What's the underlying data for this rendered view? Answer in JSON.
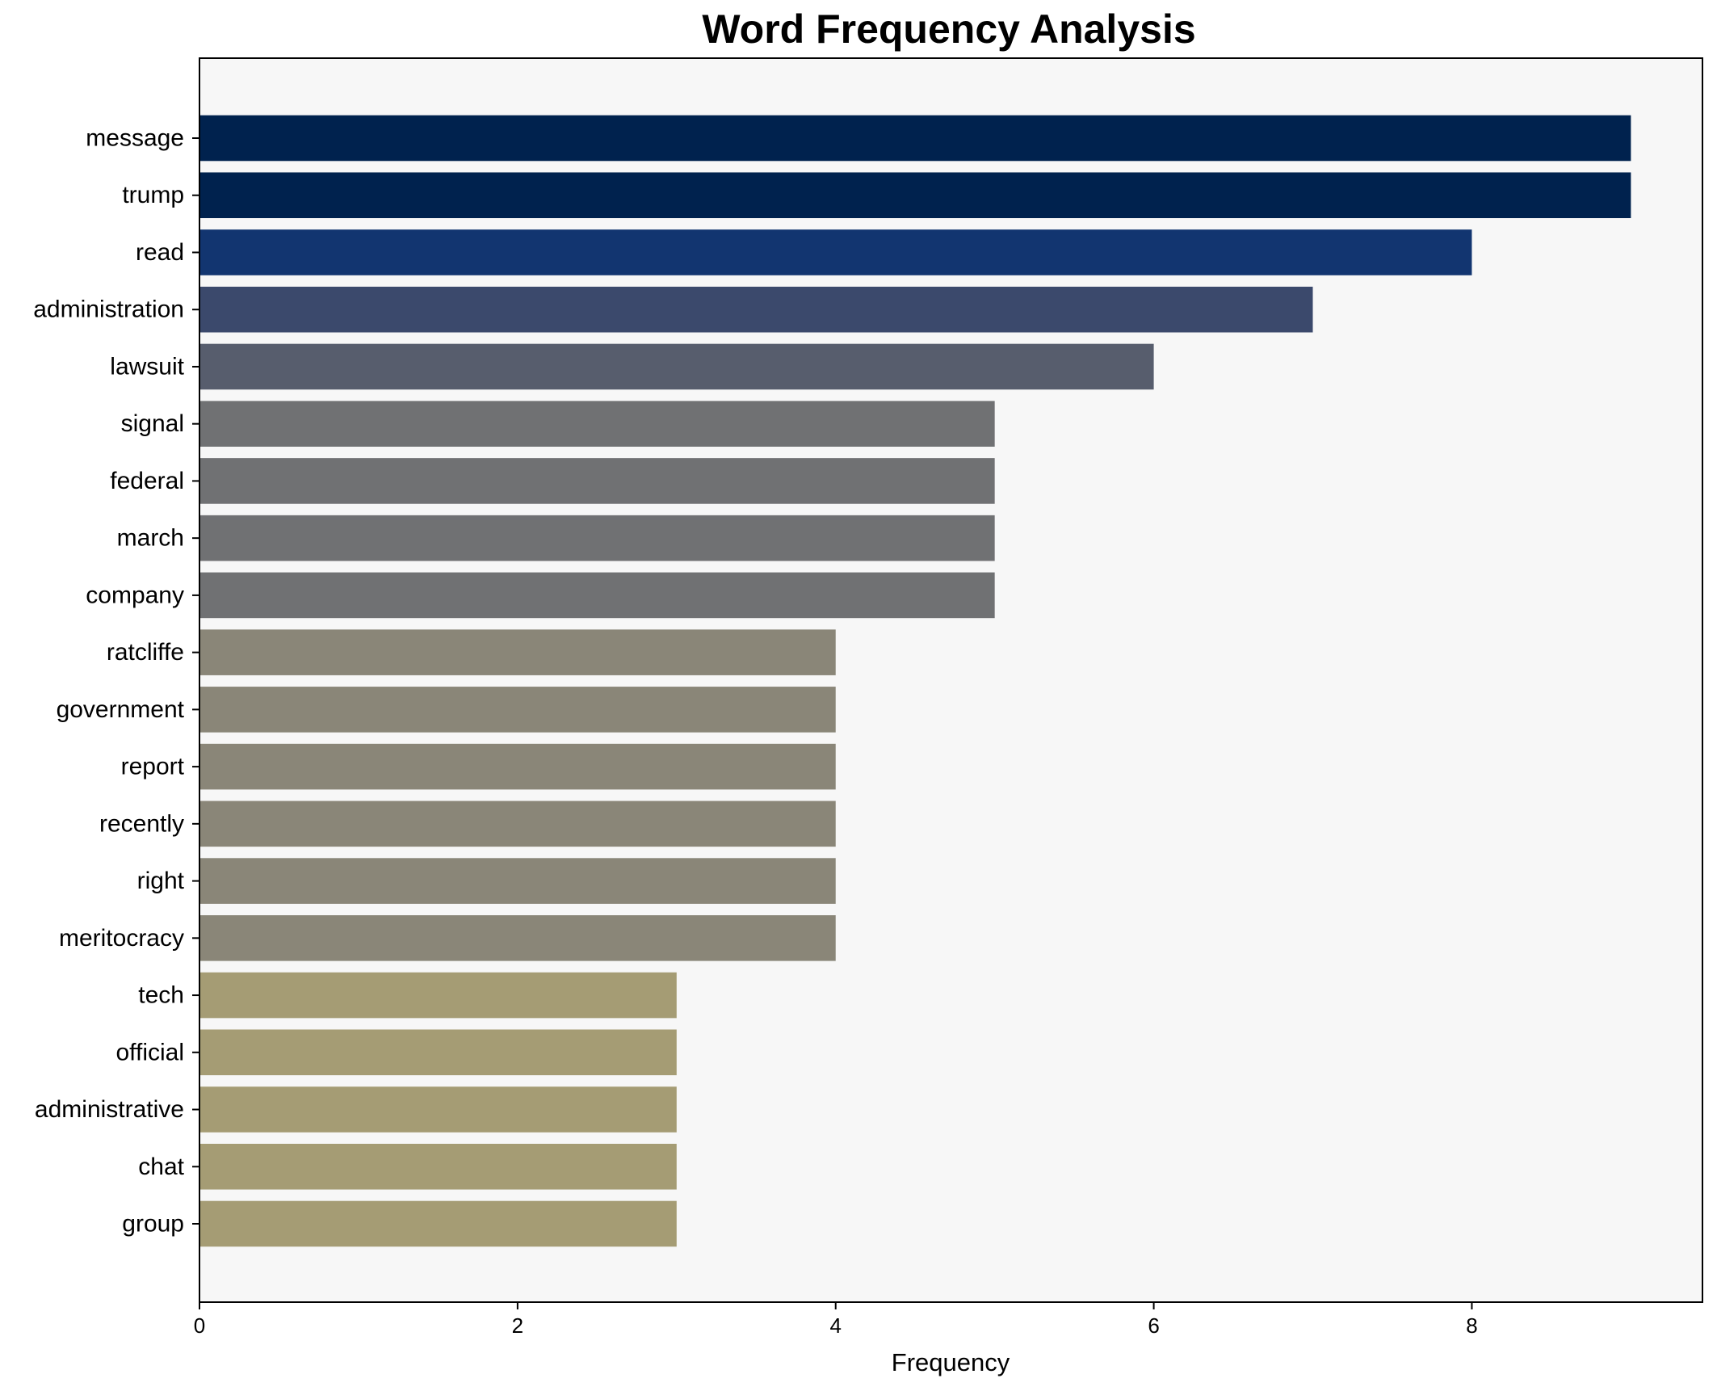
{
  "chart_data": {
    "type": "bar",
    "orientation": "horizontal",
    "title": "Word Frequency Analysis",
    "xlabel": "Frequency",
    "ylabel": "",
    "xlim": [
      0,
      9.45
    ],
    "xticks": [
      0,
      2,
      4,
      6,
      8
    ],
    "grid": false,
    "background": "#f7f7f7",
    "categories": [
      "message",
      "trump",
      "read",
      "administration",
      "lawsuit",
      "signal",
      "federal",
      "march",
      "company",
      "ratcliffe",
      "government",
      "report",
      "recently",
      "right",
      "meritocracy",
      "tech",
      "official",
      "administrative",
      "chat",
      "group"
    ],
    "values": [
      9,
      9,
      8,
      7,
      6,
      5,
      5,
      5,
      5,
      4,
      4,
      4,
      4,
      4,
      4,
      3,
      3,
      3,
      3,
      3
    ],
    "colors": [
      "#00224e",
      "#00224e",
      "#123570",
      "#3b496c",
      "#575d6d",
      "#707173",
      "#707173",
      "#707173",
      "#707173",
      "#8a8678",
      "#8a8678",
      "#8a8678",
      "#8a8678",
      "#8a8678",
      "#8a8678",
      "#a59c74",
      "#a59c74",
      "#a59c74",
      "#a59c74",
      "#a59c74"
    ]
  }
}
